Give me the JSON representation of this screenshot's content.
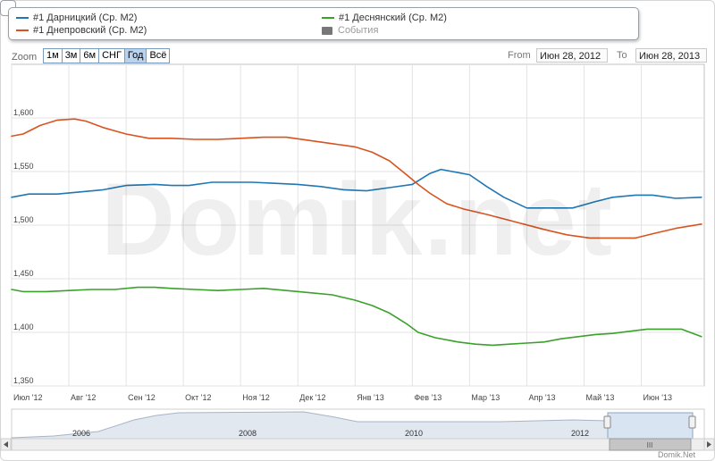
{
  "legend": {
    "items": [
      {
        "label": "#1 Дарницкий (Ср. М2)",
        "color": "#1f77b4",
        "kind": "line"
      },
      {
        "label": "#1 Днепровский (Ср. М2)",
        "color": "#d9531e",
        "kind": "line"
      },
      {
        "label": "#1 Деснянский (Ср. М2)",
        "color": "#3aa12a",
        "kind": "line"
      },
      {
        "label": "События",
        "color": "#777777",
        "kind": "box"
      }
    ]
  },
  "zoom": {
    "label": "Zoom",
    "buttons": [
      "1м",
      "3м",
      "6м",
      "СНГ",
      "Год",
      "Всё"
    ],
    "active": "Год"
  },
  "range": {
    "from_label": "From",
    "from_value": "Июн 28, 2012",
    "to_label": "To",
    "to_value": "Июн 28, 2013"
  },
  "watermark": "Domik.net",
  "credit": "Domik.Net",
  "navigator": {
    "years": [
      "2006",
      "2008",
      "2010",
      "2012"
    ]
  },
  "chart_data": {
    "type": "line",
    "x_ticks": [
      "Июл '12",
      "Авг '12",
      "Сен '12",
      "Окт '12",
      "Ноя '12",
      "Дек '12",
      "Янв '13",
      "Фев '13",
      "Мар '13",
      "Апр '13",
      "Май '13",
      "Июн '13"
    ],
    "y_ticks": [
      "1,350",
      "1,400",
      "1,450",
      "1,500",
      "1,550",
      "1,600"
    ],
    "ylim": [
      1350,
      1650
    ],
    "xlim": [
      0,
      12.1
    ],
    "grid": true,
    "legend_position": "top",
    "series": [
      {
        "name": "#1 Дарницкий (Ср. М2)",
        "color": "#1f77b4",
        "x": [
          0,
          0.3,
          0.8,
          1.2,
          1.6,
          2.0,
          2.5,
          2.8,
          3.1,
          3.5,
          3.8,
          4.2,
          4.6,
          5.0,
          5.4,
          5.8,
          6.2,
          6.6,
          7.0,
          7.3,
          7.5,
          7.8,
          8.0,
          8.3,
          8.6,
          9.0,
          9.4,
          9.8,
          10.2,
          10.5,
          10.9,
          11.2,
          11.6,
          12.05
        ],
        "y": [
          1526,
          1529,
          1529,
          1531,
          1533,
          1537,
          1538,
          1537,
          1537,
          1540,
          1540,
          1540,
          1539,
          1538,
          1536,
          1533,
          1532,
          1535,
          1538,
          1548,
          1552,
          1549,
          1547,
          1536,
          1526,
          1516,
          1516,
          1516,
          1522,
          1526,
          1528,
          1528,
          1525,
          1526
        ]
      },
      {
        "name": "#1 Днепровский (Ср. М2)",
        "color": "#d9531e",
        "x": [
          0,
          0.2,
          0.5,
          0.8,
          1.1,
          1.3,
          1.6,
          2.0,
          2.4,
          2.8,
          3.2,
          3.6,
          4.0,
          4.4,
          4.8,
          5.2,
          5.6,
          6.0,
          6.3,
          6.6,
          6.9,
          7.1,
          7.3,
          7.6,
          7.9,
          8.3,
          8.8,
          9.3,
          9.7,
          10.1,
          10.5,
          10.9,
          11.2,
          11.6,
          12.05
        ],
        "y": [
          1583,
          1585,
          1593,
          1598,
          1599,
          1597,
          1591,
          1585,
          1581,
          1581,
          1580,
          1580,
          1581,
          1582,
          1582,
          1579,
          1576,
          1573,
          1568,
          1560,
          1547,
          1538,
          1530,
          1520,
          1515,
          1510,
          1503,
          1496,
          1491,
          1488,
          1488,
          1488,
          1492,
          1497,
          1501
        ]
      },
      {
        "name": "#1 Деснянский (Ср. М2)",
        "color": "#3aa12a",
        "x": [
          0,
          0.2,
          0.6,
          1.0,
          1.4,
          1.8,
          2.2,
          2.5,
          2.8,
          3.2,
          3.6,
          4.0,
          4.4,
          4.8,
          5.2,
          5.6,
          6.0,
          6.3,
          6.6,
          6.9,
          7.1,
          7.4,
          7.8,
          8.1,
          8.4,
          8.7,
          9.0,
          9.3,
          9.6,
          9.9,
          10.2,
          10.5,
          10.8,
          11.1,
          11.4,
          11.7,
          12.05
        ],
        "y": [
          1440,
          1438,
          1438,
          1439,
          1440,
          1440,
          1442,
          1442,
          1441,
          1440,
          1439,
          1440,
          1441,
          1439,
          1437,
          1435,
          1430,
          1425,
          1418,
          1408,
          1400,
          1395,
          1391,
          1389,
          1388,
          1389,
          1390,
          1391,
          1394,
          1396,
          1398,
          1399,
          1401,
          1403,
          1403,
          1403,
          1396
        ]
      }
    ]
  }
}
